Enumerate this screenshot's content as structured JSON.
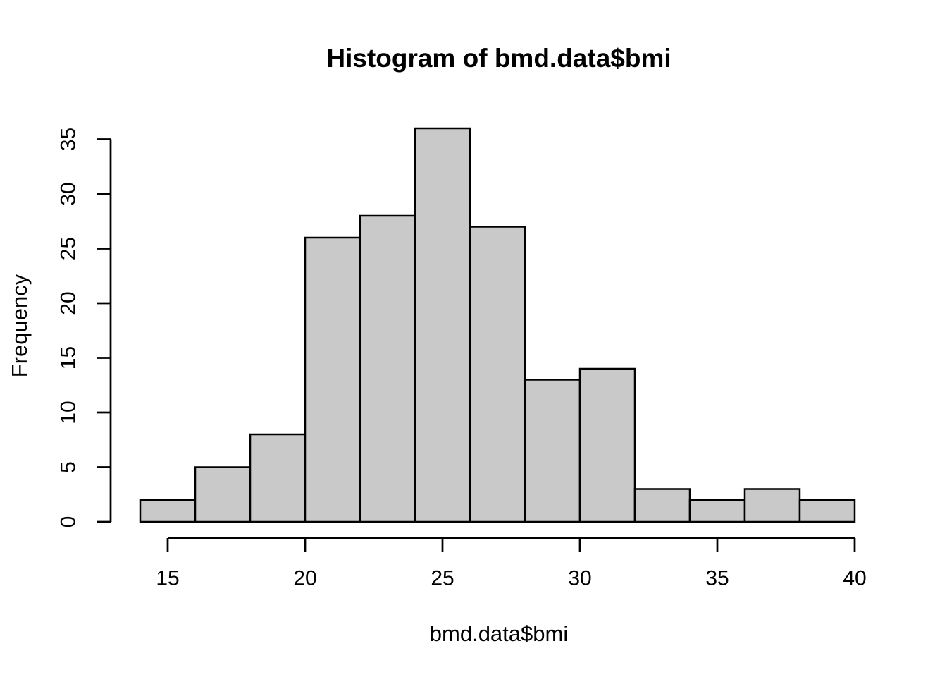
{
  "figure": {
    "background": "#FFFFFF"
  },
  "chart_data": {
    "type": "bar",
    "subtype": "histogram",
    "title": "Histogram of bmd.data$bmi",
    "xlabel": "bmd.data$bmi",
    "ylabel": "Frequency",
    "bin_edges": [
      14,
      16,
      18,
      20,
      22,
      24,
      26,
      28,
      30,
      32,
      34,
      36,
      38,
      40
    ],
    "counts": [
      2,
      5,
      8,
      26,
      28,
      36,
      27,
      13,
      14,
      3,
      2,
      3,
      2
    ],
    "x_ticks": [
      15,
      20,
      25,
      30,
      35,
      40
    ],
    "y_ticks": [
      0,
      5,
      10,
      15,
      20,
      25,
      30,
      35
    ],
    "xlim": [
      14,
      40
    ],
    "ylim": [
      0,
      36
    ],
    "grid": false,
    "legend": false,
    "bar_fill": "#C9C9C9",
    "bar_stroke": "#000000",
    "axis_color": "#000000",
    "text_color": "#000000"
  }
}
